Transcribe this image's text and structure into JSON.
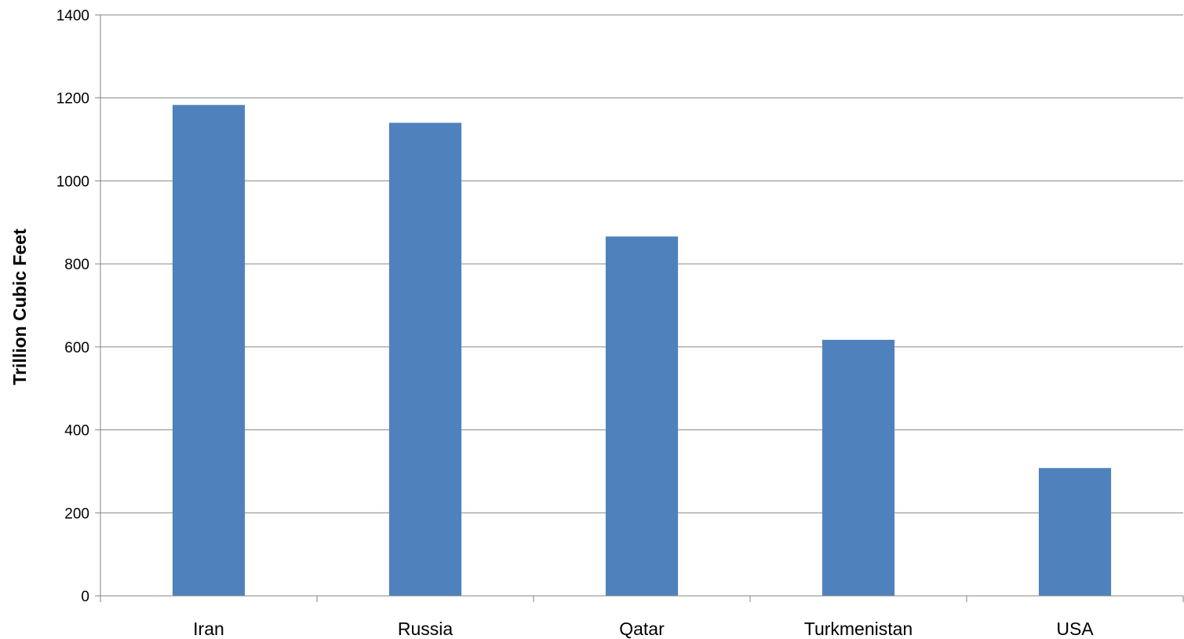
{
  "chart_data": {
    "type": "bar",
    "categories": [
      "Iran",
      "Russia",
      "Qatar",
      "Turkmenistan",
      "USA"
    ],
    "values": [
      1183,
      1140,
      866,
      617,
      308
    ],
    "title": "",
    "xlabel": "",
    "ylabel": "Trillion Cubic Feet",
    "ylim": [
      0,
      1400
    ],
    "yticks": [
      "0",
      "200",
      "400",
      "600",
      "800",
      "1000",
      "1200",
      "1400"
    ],
    "grid": true,
    "legend": "none",
    "bar_color": "#4F81BD"
  }
}
